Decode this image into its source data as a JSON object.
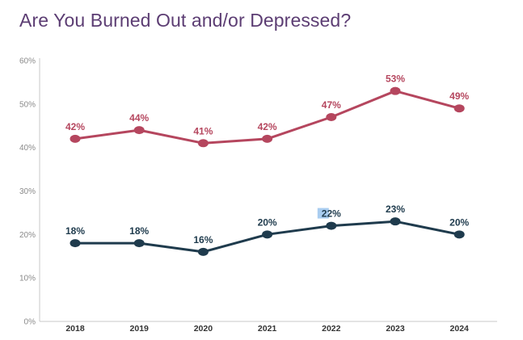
{
  "chart_data": {
    "type": "line",
    "title": "Are You Burned Out and/or Depressed?",
    "xlabel": "",
    "ylabel": "",
    "x": [
      "2018",
      "2019",
      "2020",
      "2021",
      "2022",
      "2023",
      "2024"
    ],
    "ylim": [
      0,
      60
    ],
    "yticks": [
      "0%",
      "10%",
      "20%",
      "30%",
      "40%",
      "50%",
      "60%"
    ],
    "grid": false,
    "legend": "none",
    "series": [
      {
        "values": [
          42,
          44,
          41,
          42,
          47,
          53,
          49
        ],
        "labels": [
          "42%",
          "44%",
          "41%",
          "42%",
          "47%",
          "53%",
          "49%"
        ],
        "color": "#b5465e"
      },
      {
        "values": [
          18,
          18,
          16,
          20,
          22,
          23,
          20
        ],
        "labels": [
          "18%",
          "18%",
          "16%",
          "20%",
          "22%",
          "23%",
          "20%"
        ],
        "color": "#1f3b4d"
      }
    ],
    "highlight": {
      "series": 1,
      "index": 4,
      "color": "#a9cdf0"
    }
  }
}
